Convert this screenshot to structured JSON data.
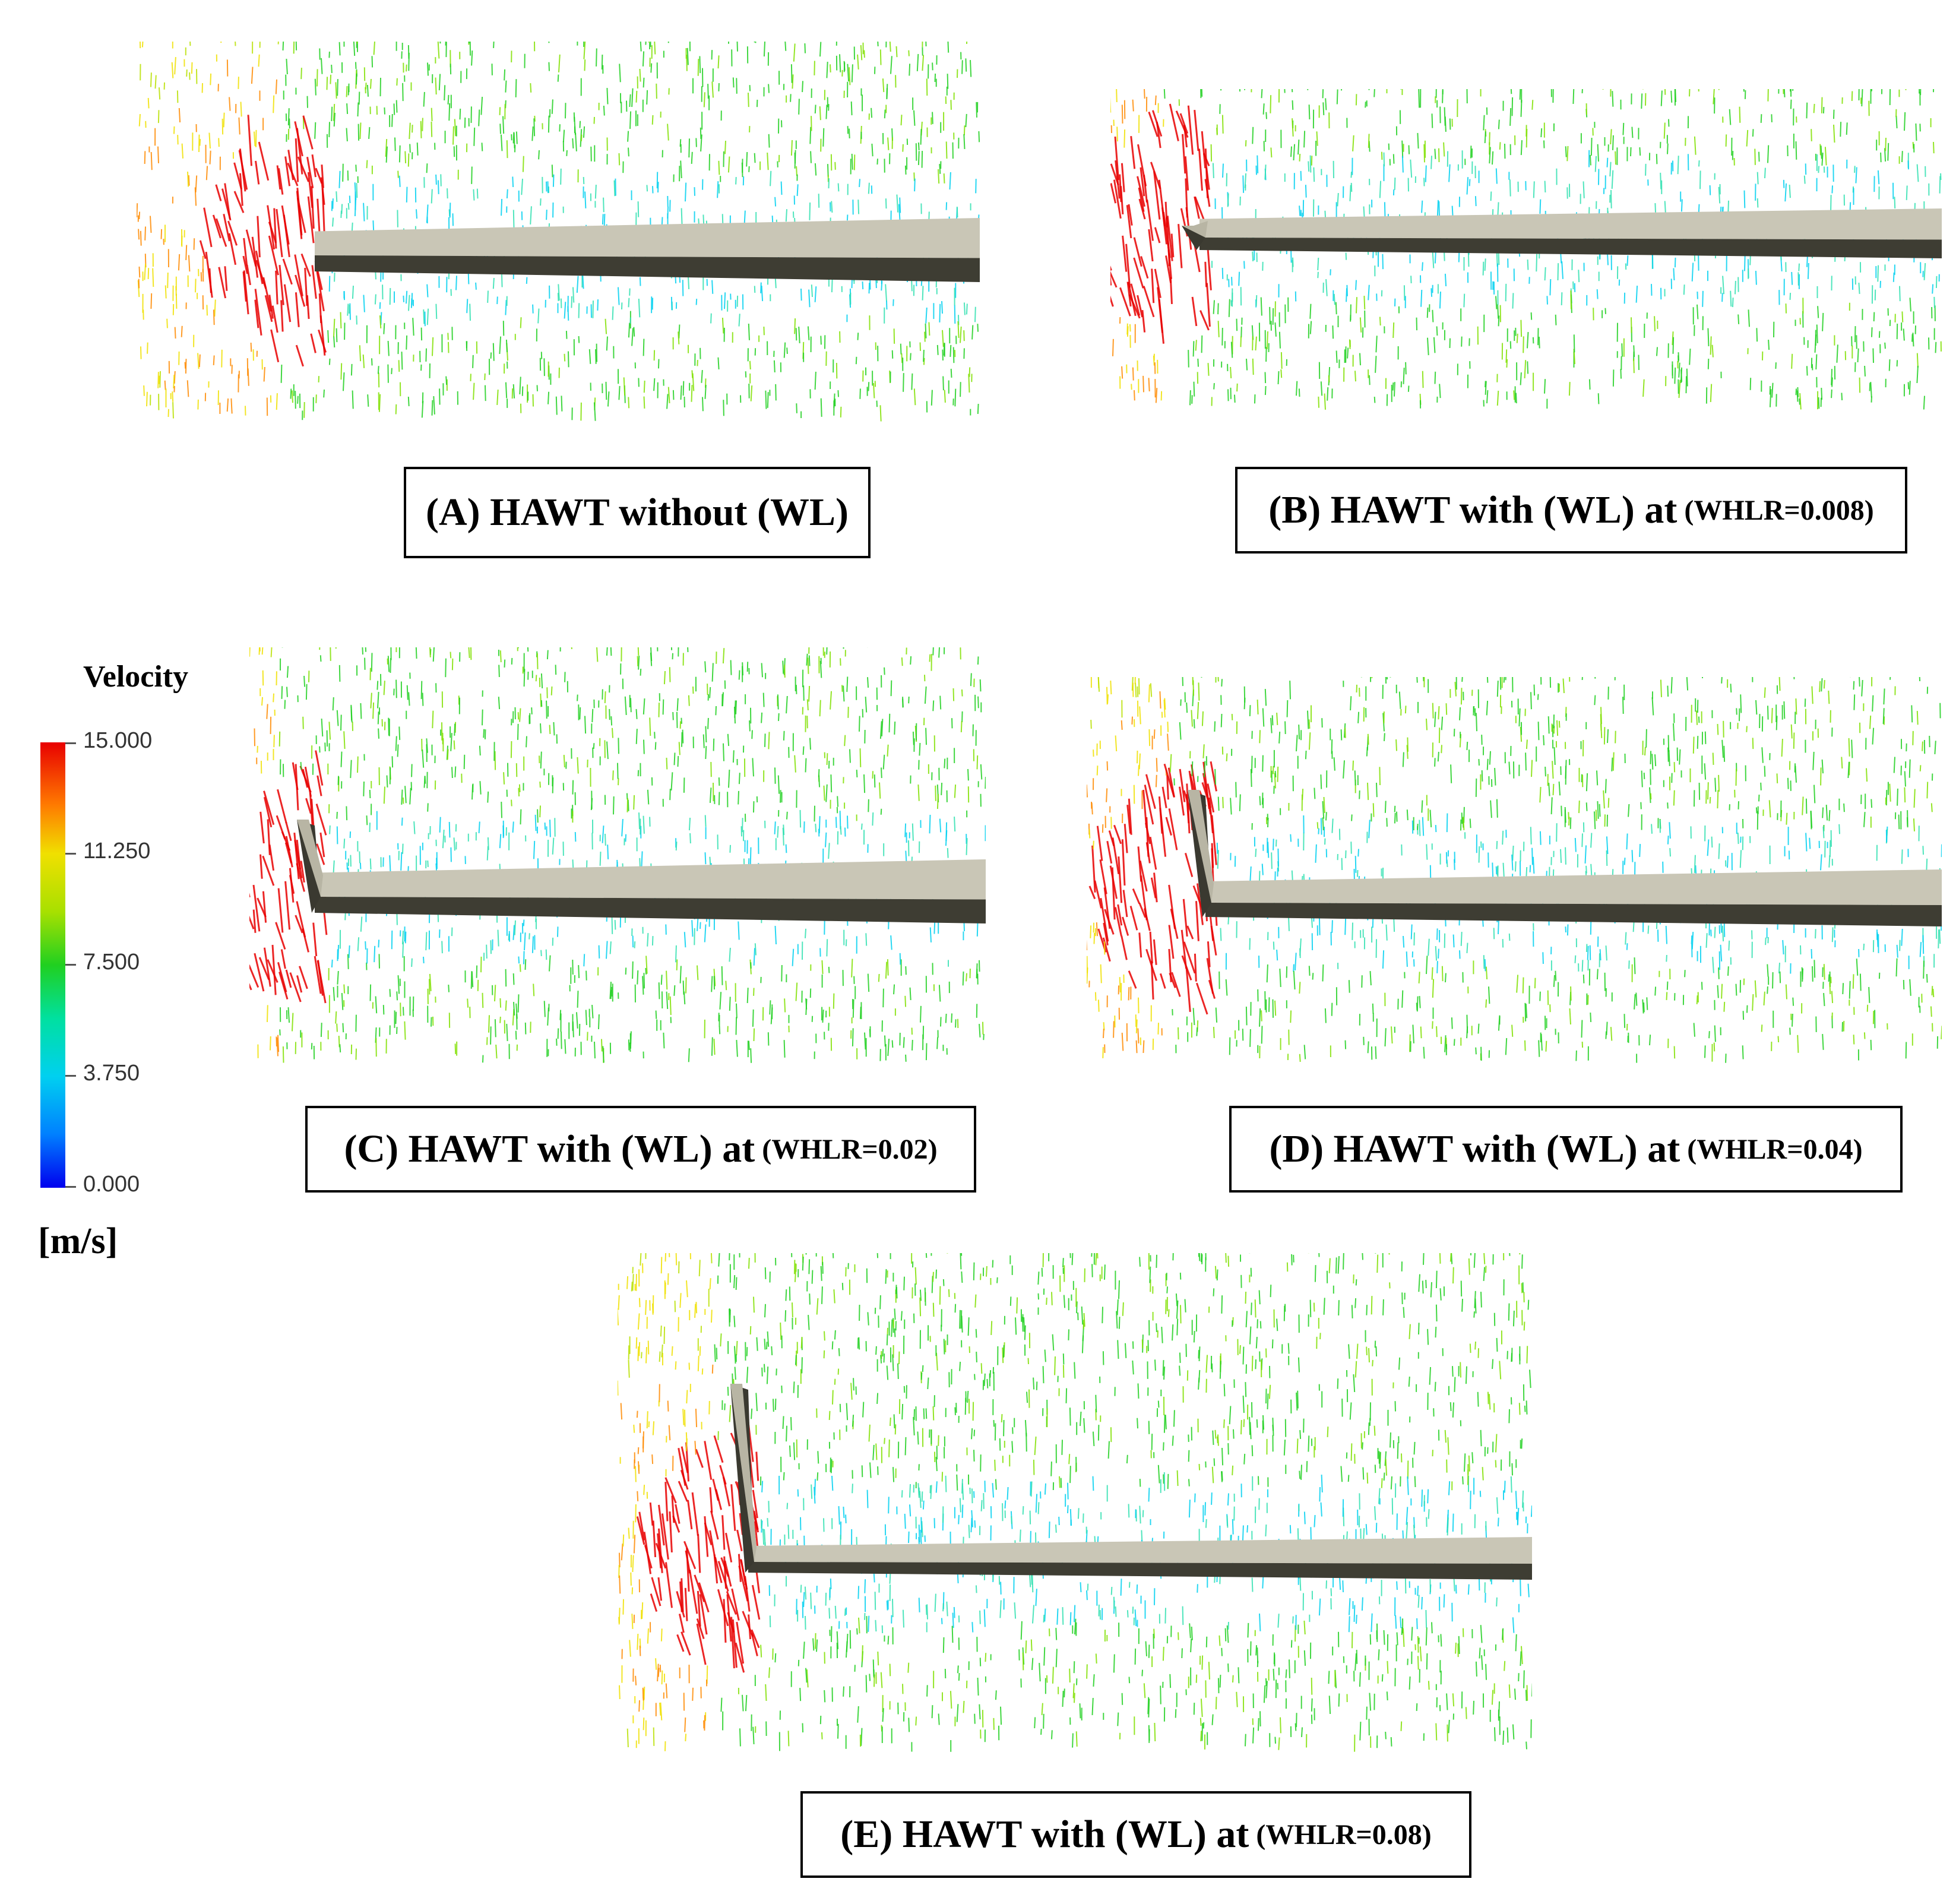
{
  "panels": [
    {
      "id": "A",
      "caption_main": "(A) HAWT without (WL)",
      "caption_sub": "",
      "winglet": "none"
    },
    {
      "id": "B",
      "caption_main": "(B) HAWT with (WL) at",
      "caption_sub": "(WHLR=0.008)",
      "winglet": "tiny"
    },
    {
      "id": "C",
      "caption_main": "(C) HAWT with (WL) at",
      "caption_sub": "(WHLR=0.02)",
      "winglet": "small"
    },
    {
      "id": "D",
      "caption_main": "(D) HAWT with (WL) at",
      "caption_sub": "(WHLR=0.04)",
      "winglet": "medium"
    },
    {
      "id": "E",
      "caption_main": "(E) HAWT with (WL) at",
      "caption_sub": "(WHLR=0.08)",
      "winglet": "large"
    }
  ],
  "legend": {
    "title": "Velocity",
    "unit": "[m/s]",
    "ticks": [
      "15.000",
      "11.250",
      "7.500",
      "3.750",
      "0.000"
    ],
    "colors": {
      "max": "#e80000",
      "high": "#f0e000",
      "mid": "#20d020",
      "low": "#00d0f0",
      "min": "#0000ee"
    }
  }
}
